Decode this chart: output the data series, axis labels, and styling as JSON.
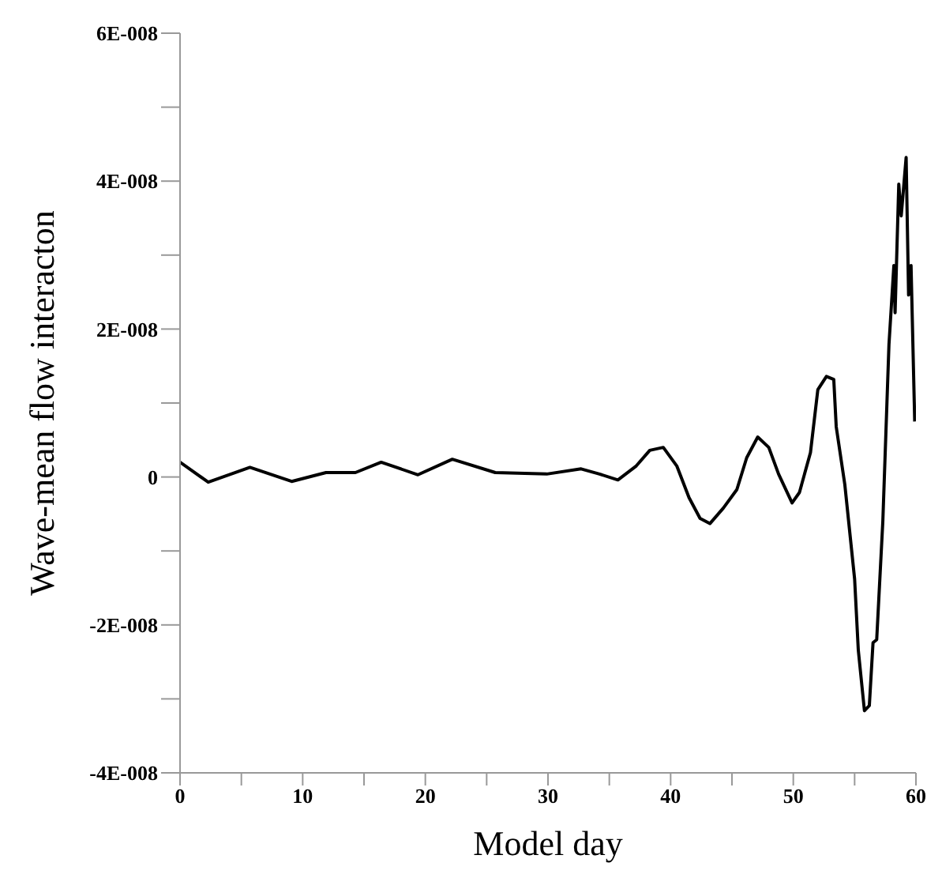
{
  "chart_data": {
    "type": "line",
    "xlabel": "Model day",
    "ylabel": "Wave-mean flow interacton",
    "xlim": [
      0,
      60
    ],
    "ylim": [
      -4e-08,
      6e-08
    ],
    "xticks": [
      0,
      {
        "value": 5,
        "label": null
      },
      10,
      {
        "value": 15,
        "label": null
      },
      20,
      {
        "value": 25,
        "label": null
      },
      30,
      {
        "value": 35,
        "label": null
      },
      40,
      {
        "value": 45,
        "label": null
      },
      50,
      {
        "value": 55,
        "label": null
      },
      60
    ],
    "yticks": [
      {
        "value": -4e-08,
        "label": "-4E-008"
      },
      {
        "value": -3e-08,
        "label": null
      },
      {
        "value": -2e-08,
        "label": "-2E-008"
      },
      {
        "value": -1e-08,
        "label": null
      },
      0,
      {
        "value": 1e-08,
        "label": null
      },
      {
        "value": 2e-08,
        "label": "2E-008"
      },
      {
        "value": 3e-08,
        "label": null
      },
      {
        "value": 4e-08,
        "label": "4E-008"
      },
      {
        "value": 5e-08,
        "label": null
      },
      {
        "value": 6e-08,
        "label": "6E-008"
      }
    ],
    "grid": false,
    "legend": false,
    "marker": "none",
    "line_style": "solid",
    "series": [
      {
        "color": "#000000",
        "x": [
          0,
          2.3,
          5.7,
          9.1,
          11.9,
          14.3,
          16.4,
          19.4,
          22.2,
          25.7,
          29.9,
          32.7,
          34.2,
          35.7,
          37.2,
          38.3,
          39.4,
          40.5,
          41.5,
          42.4,
          43.2,
          44.3,
          45.4,
          46.2,
          47.1,
          48.0,
          48.8,
          49.9,
          50.5,
          51.4,
          52.0,
          52.7,
          53.3,
          53.5,
          54.2,
          55.0,
          55.3,
          55.8,
          56.2,
          56.5,
          56.8,
          57.3,
          57.8,
          58.2,
          58.3,
          58.6,
          58.8,
          59.2,
          59.4,
          59.6,
          59.9
        ],
        "values": [
          2e-09,
          -7e-10,
          1.3e-09,
          -6e-10,
          6e-10,
          6e-10,
          2e-09,
          3e-10,
          2.4e-09,
          6e-10,
          4e-10,
          1.1e-09,
          4e-10,
          -4e-10,
          1.5e-09,
          3.6e-09,
          4e-09,
          1.5e-09,
          -2.8e-09,
          -5.6e-09,
          -6.3e-09,
          -4.2e-09,
          -1.7e-09,
          2.6e-09,
          5.4e-09,
          4e-09,
          4e-10,
          -3.5e-09,
          -2.1e-09,
          3.3e-09,
          1.18e-08,
          1.36e-08,
          1.32e-08,
          6.8e-09,
          -1e-09,
          -1.38e-08,
          -2.34e-08,
          -3.16e-08,
          -3.09e-08,
          -2.24e-08,
          -2.2e-08,
          -6e-09,
          1.79e-08,
          2.86e-08,
          2.22e-08,
          3.96e-08,
          3.53e-08,
          4.32e-08,
          2.46e-08,
          2.86e-08,
          7.5e-09
        ]
      }
    ]
  }
}
